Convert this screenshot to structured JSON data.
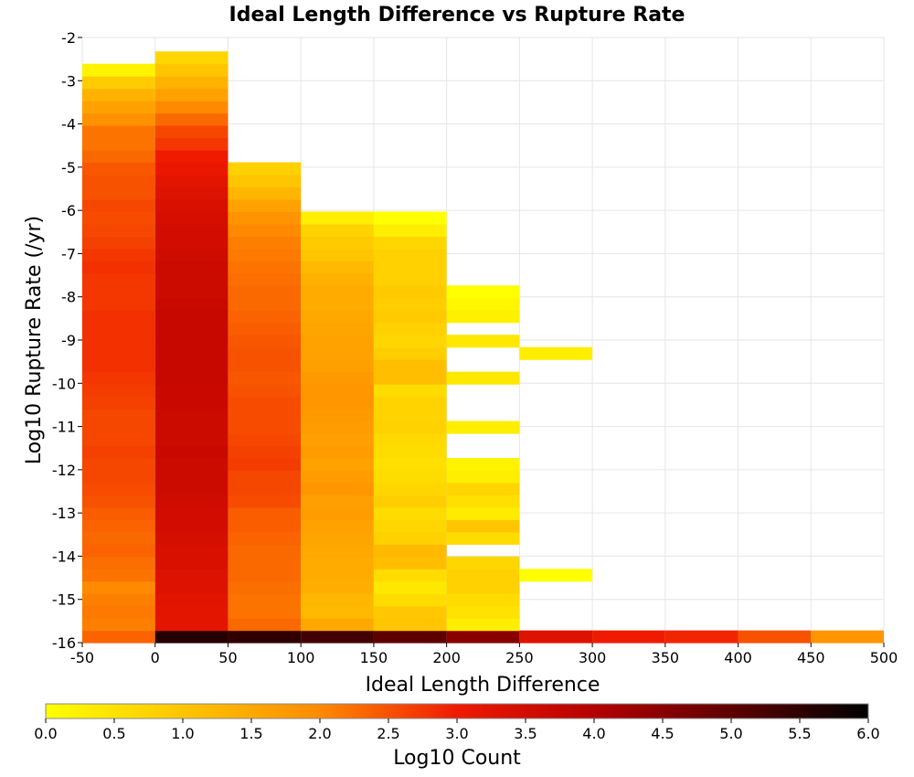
{
  "chart_data": {
    "type": "heatmap",
    "title": "Ideal Length Difference vs Rupture Rate",
    "xlabel": "Ideal Length Difference",
    "ylabel": "Log10 Rupture Rate (/yr)",
    "xlim": [
      -50,
      500
    ],
    "ylim": [
      -16,
      -2
    ],
    "x_ticks": [
      "-50",
      "0",
      "50",
      "100",
      "150",
      "200",
      "250",
      "300",
      "350",
      "400",
      "450",
      "500"
    ],
    "y_ticks": [
      "-2",
      "-3",
      "-4",
      "-5",
      "-6",
      "-7",
      "-8",
      "-9",
      "-10",
      "-11",
      "-12",
      "-13",
      "-14",
      "-15",
      "-16"
    ],
    "grid": true,
    "x_bin_width": 50,
    "y_bin_height": 0.285,
    "colorbar": {
      "label": "Log10 Count",
      "min": 0.0,
      "max": 6.0,
      "ticks": [
        "0.0",
        "0.5",
        "1.0",
        "1.5",
        "2.0",
        "2.5",
        "3.0",
        "3.5",
        "4.0",
        "4.5",
        "5.0",
        "5.5",
        "6.0"
      ],
      "colormap": "hot-reversed"
    },
    "columns": [
      {
        "x": -25,
        "y_start": -15.86,
        "values": [
          2.35,
          2.1,
          2.15,
          2.1,
          2.0,
          2.2,
          2.25,
          2.35,
          2.3,
          2.35,
          2.4,
          2.5,
          2.55,
          2.6,
          2.6,
          2.65,
          2.6,
          2.6,
          2.6,
          2.65,
          2.7,
          2.75,
          2.8,
          2.8,
          2.8,
          2.8,
          2.8,
          2.75,
          2.75,
          2.75,
          2.8,
          2.75,
          2.65,
          2.6,
          2.55,
          2.6,
          2.5,
          2.5,
          2.45,
          2.3,
          2.2,
          2.2,
          1.9,
          1.6,
          1.3,
          0.9,
          0.2
        ]
      },
      {
        "x": 25,
        "y_start": -15.86,
        "values": [
          5.6,
          3.2,
          3.2,
          3.25,
          3.3,
          3.3,
          3.4,
          3.4,
          3.45,
          3.5,
          3.5,
          3.55,
          3.6,
          3.6,
          3.6,
          3.65,
          3.6,
          3.6,
          3.6,
          3.65,
          3.65,
          3.7,
          3.7,
          3.7,
          3.7,
          3.7,
          3.7,
          3.65,
          3.6,
          3.6,
          3.6,
          3.55,
          3.5,
          3.5,
          3.45,
          3.4,
          3.3,
          3.2,
          3.1,
          3.0,
          2.75,
          2.6,
          2.3,
          2.0,
          1.6,
          1.3,
          1.0,
          0.7
        ]
      },
      {
        "x": 75,
        "y_start": -15.86,
        "values": [
          5.5,
          2.3,
          2.2,
          2.2,
          2.25,
          2.3,
          2.3,
          2.3,
          2.35,
          2.4,
          2.4,
          2.55,
          2.6,
          2.6,
          2.7,
          2.65,
          2.6,
          2.55,
          2.55,
          2.55,
          2.5,
          2.45,
          2.5,
          2.5,
          2.45,
          2.4,
          2.35,
          2.3,
          2.3,
          2.25,
          2.2,
          2.15,
          2.1,
          2.0,
          1.85,
          1.6,
          1.25,
          1.0,
          0.8
        ]
      },
      {
        "x": 125,
        "y_start": -15.86,
        "values": [
          5.3,
          1.5,
          1.2,
          1.25,
          1.4,
          1.45,
          1.45,
          1.5,
          1.55,
          1.6,
          1.7,
          1.65,
          1.8,
          1.7,
          1.6,
          1.7,
          1.65,
          1.7,
          1.75,
          1.8,
          1.8,
          1.75,
          1.65,
          1.6,
          1.6,
          1.55,
          1.5,
          1.45,
          1.45,
          1.35,
          1.2,
          1.0,
          0.9,
          0.75,
          0.3
        ]
      },
      {
        "x": 175,
        "y_start": -15.86,
        "values": [
          5.0,
          1.0,
          0.95,
          0.6,
          0.4,
          0.6,
          1.1,
          1.2,
          0.8,
          0.7,
          0.6,
          0.85,
          0.7,
          0.6,
          0.55,
          0.6,
          0.65,
          0.8,
          0.75,
          0.75,
          0.6,
          1.1,
          1.1,
          0.85,
          0.7,
          0.8,
          0.9,
          0.85,
          0.9,
          0.8,
          0.8,
          0.8,
          0.7,
          0.3,
          0.0
        ]
      },
      {
        "x": 225,
        "y_start": -15.86,
        "values": [
          4.5,
          0.3,
          0.5,
          0.6,
          0.8,
          0.8,
          0.7,
          null,
          0.6,
          1.0,
          0.35,
          0.55,
          0.7,
          0.3,
          0.2,
          null,
          null,
          0.3,
          null,
          null,
          null,
          0.4,
          null,
          null,
          0.4,
          null,
          0.25,
          0.15,
          0.0
        ]
      },
      {
        "x": 275,
        "y_start": -15.86,
        "values": [
          3.3,
          null,
          null,
          null,
          null,
          0.0,
          null,
          null,
          null,
          null,
          null,
          null,
          null,
          null,
          null,
          null,
          null,
          null,
          null,
          null,
          null,
          null,
          null,
          0.3
        ]
      },
      {
        "x": 325,
        "y_start": -15.86,
        "values": [
          3.0
        ]
      },
      {
        "x": 375,
        "y_start": -15.86,
        "values": [
          2.9
        ]
      },
      {
        "x": 425,
        "y_start": -15.86,
        "values": [
          2.5
        ]
      },
      {
        "x": 475,
        "y_start": -15.86,
        "values": [
          1.8
        ]
      }
    ]
  }
}
